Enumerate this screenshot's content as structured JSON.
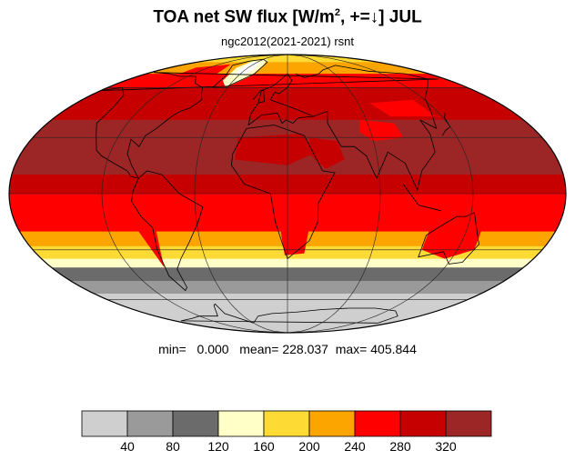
{
  "title": {
    "main": "TOA net SW flux [W/m",
    "sup": "2",
    "rest": ", +=↓]  JUL"
  },
  "subtitle": "ngc2012(2021-2021)   rsnt",
  "stats": {
    "min_label": "min=",
    "min": "0.000",
    "mean_label": "mean=",
    "mean": "228.037",
    "max_label": "max=",
    "max": "405.844"
  },
  "colorbar": {
    "colors": [
      "#cfcfcf",
      "#9a9a9a",
      "#6b6b6b",
      "#ffffc7",
      "#fedb34",
      "#fca500",
      "#fe0000",
      "#c60000",
      "#9c2626"
    ],
    "ticks": [
      "40",
      "80",
      "120",
      "160",
      "200",
      "240",
      "280",
      "320"
    ]
  },
  "map": {
    "projection": "mollweide",
    "bands": [
      {
        "lat_top": 90,
        "lat_bottom": 80,
        "color": "#fedb34"
      },
      {
        "lat_top": 80,
        "lat_bottom": 70,
        "color": "#fca500"
      },
      {
        "lat_top": 70,
        "lat_bottom": 60,
        "color": "#fe0000"
      },
      {
        "lat_top": 60,
        "lat_bottom": 40,
        "color": "#c60000"
      },
      {
        "lat_top": 40,
        "lat_bottom": 10,
        "color": "#9c2626"
      },
      {
        "lat_top": 10,
        "lat_bottom": 0,
        "color": "#c60000"
      },
      {
        "lat_top": 0,
        "lat_bottom": -10,
        "color": "#fe0000"
      },
      {
        "lat_top": -10,
        "lat_bottom": -20,
        "color": "#fe0000"
      },
      {
        "lat_top": -20,
        "lat_bottom": -28,
        "color": "#fca500"
      },
      {
        "lat_top": -28,
        "lat_bottom": -35,
        "color": "#fedb34"
      },
      {
        "lat_top": -35,
        "lat_bottom": -40,
        "color": "#ffffc7"
      },
      {
        "lat_top": -40,
        "lat_bottom": -48,
        "color": "#6b6b6b"
      },
      {
        "lat_top": -48,
        "lat_bottom": -56,
        "color": "#9a9a9a"
      },
      {
        "lat_top": -56,
        "lat_bottom": -90,
        "color": "#cfcfcf"
      }
    ],
    "grid_color": "#222222",
    "coast_color": "#000000"
  }
}
